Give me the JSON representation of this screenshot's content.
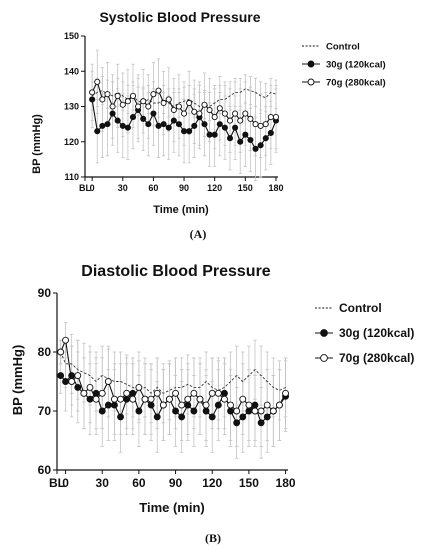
{
  "chart_data": [
    {
      "panel": "A",
      "type": "line",
      "title": "Systolic Blood Pressure",
      "xlabel": "Time (min)",
      "ylabel": "BP (mmHg)",
      "caption": "(A)",
      "xlim": [
        -7,
        182
      ],
      "ylim": [
        110,
        150
      ],
      "xticks": [
        {
          "v": -7,
          "label": "BL"
        },
        {
          "v": 0,
          "label": "0"
        },
        {
          "v": 30,
          "label": "30"
        },
        {
          "v": 60,
          "label": "60"
        },
        {
          "v": 90,
          "label": "90"
        },
        {
          "v": 120,
          "label": "120"
        },
        {
          "v": 150,
          "label": "150"
        },
        {
          "v": 180,
          "label": "180"
        }
      ],
      "yticks": [
        110,
        120,
        130,
        140,
        150
      ],
      "legend_position": "right",
      "x": [
        0,
        5,
        10,
        15,
        20,
        25,
        30,
        35,
        40,
        45,
        50,
        55,
        60,
        65,
        70,
        75,
        80,
        85,
        90,
        95,
        100,
        105,
        110,
        115,
        120,
        125,
        130,
        135,
        140,
        145,
        150,
        155,
        160,
        165,
        170,
        175,
        180
      ],
      "series": [
        {
          "name": "Control",
          "style": "dashed",
          "values": [
            133,
            134,
            134.5,
            133.5,
            133,
            134,
            133,
            132,
            133,
            131.5,
            131,
            132,
            131,
            131,
            132,
            131,
            130,
            131,
            131.5,
            132,
            131,
            130,
            130.5,
            130,
            131,
            132,
            132,
            133,
            134,
            134,
            135,
            134.5,
            134,
            133,
            132.5,
            134,
            133.5
          ],
          "errors": [
            4,
            4,
            4,
            4,
            4,
            4,
            4,
            4,
            4,
            4,
            4,
            4,
            4,
            4,
            4,
            4,
            4,
            4,
            4,
            4,
            4,
            4,
            4,
            4,
            4,
            4,
            4,
            4,
            4,
            4,
            4,
            4,
            4,
            4,
            4,
            4,
            4
          ]
        },
        {
          "name": "30g (120kcal)",
          "style": "filled",
          "values": [
            132,
            123,
            124.5,
            125,
            128,
            126,
            124.5,
            124,
            127,
            129,
            126.5,
            125,
            128,
            124.5,
            125,
            124,
            126,
            125,
            123,
            123,
            124.5,
            127,
            125,
            122,
            122,
            125,
            124,
            121,
            124,
            120,
            122,
            120.5,
            118,
            119,
            121,
            122.5,
            126
          ],
          "errors": [
            8,
            9,
            9,
            9,
            9,
            9,
            9,
            9,
            9,
            9,
            9,
            9,
            9,
            9,
            9,
            9,
            9,
            9,
            9,
            9,
            9,
            9,
            9,
            9,
            9,
            9,
            9,
            9,
            9,
            9,
            9,
            9,
            9,
            9,
            9,
            9,
            9
          ]
        },
        {
          "name": "70g (280kcal)",
          "style": "open",
          "values": [
            134,
            137,
            132,
            133.5,
            130,
            133,
            130.5,
            131.5,
            133,
            130,
            131.5,
            130,
            133.5,
            134.5,
            131,
            132,
            129,
            130,
            128,
            131,
            128.5,
            128,
            130.5,
            129,
            127,
            129.5,
            128,
            126,
            128,
            126,
            128,
            126.5,
            125,
            124.5,
            125,
            127,
            127
          ],
          "errors": [
            8,
            9,
            9,
            9,
            9,
            9,
            9,
            9,
            9,
            9,
            9,
            9,
            9,
            9,
            9,
            9,
            9,
            9,
            9,
            9,
            9,
            9,
            9,
            9,
            9,
            9,
            9,
            9,
            9,
            9,
            9,
            9,
            9,
            9,
            9,
            9,
            9
          ]
        }
      ]
    },
    {
      "panel": "B",
      "type": "line",
      "title": "Diastolic Blood Pressure",
      "xlabel": "Time (min)",
      "ylabel": "BP (mmHg)",
      "caption": "(B)",
      "xlim": [
        -7,
        182
      ],
      "ylim": [
        60,
        90
      ],
      "xticks": [
        {
          "v": -7,
          "label": "BL"
        },
        {
          "v": 0,
          "label": "0"
        },
        {
          "v": 30,
          "label": "30"
        },
        {
          "v": 60,
          "label": "60"
        },
        {
          "v": 90,
          "label": "90"
        },
        {
          "v": 120,
          "label": "120"
        },
        {
          "v": 150,
          "label": "150"
        },
        {
          "v": 180,
          "label": "180"
        }
      ],
      "yticks": [
        60,
        70,
        80,
        90
      ],
      "legend_position": "right",
      "x": [
        -4,
        0,
        5,
        10,
        15,
        20,
        25,
        30,
        35,
        40,
        45,
        50,
        55,
        60,
        65,
        70,
        75,
        80,
        85,
        90,
        95,
        100,
        105,
        110,
        115,
        120,
        125,
        130,
        135,
        140,
        145,
        150,
        155,
        160,
        165,
        170,
        175,
        180
      ],
      "series": [
        {
          "name": "Control",
          "style": "dashed",
          "values": [
            80,
            78,
            78,
            77,
            76.5,
            76,
            75,
            76,
            75.5,
            75,
            75,
            74.5,
            74,
            73.5,
            74,
            73,
            74,
            73,
            73.5,
            74,
            74,
            74.5,
            74,
            74,
            75,
            74,
            73.5,
            74,
            75,
            76,
            75,
            76,
            77,
            76,
            75,
            74,
            73.5,
            74
          ],
          "errors": [
            2,
            4,
            5,
            5,
            5,
            5,
            5,
            5,
            5,
            5,
            5,
            5,
            5,
            5,
            5,
            5,
            5,
            5,
            5,
            5,
            5,
            5,
            5,
            5,
            5,
            5,
            5,
            5,
            5,
            5,
            5,
            5,
            5,
            5,
            5,
            5,
            5,
            5
          ]
        },
        {
          "name": "30g (120kcal)",
          "style": "filled",
          "values": [
            76,
            75,
            76,
            74,
            73,
            72,
            73,
            70,
            71,
            71,
            69,
            72,
            73,
            70,
            72,
            71,
            69,
            71,
            72,
            70,
            69,
            71,
            70,
            72,
            70,
            69,
            71,
            73,
            70,
            68,
            69,
            70,
            71,
            68,
            69,
            70,
            71,
            72.5
          ],
          "errors": [
            3,
            5,
            5,
            6,
            6,
            6,
            6,
            6,
            6,
            6,
            6,
            6,
            6,
            6,
            6,
            6,
            6,
            6,
            6,
            6,
            6,
            6,
            6,
            6,
            6,
            6,
            6,
            6,
            6,
            6,
            6,
            6,
            6,
            6,
            6,
            6,
            6,
            6
          ]
        },
        {
          "name": "70g (280kcal)",
          "style": "open",
          "values": [
            80,
            82,
            75,
            76,
            73,
            74,
            72,
            73,
            75,
            72,
            72,
            73,
            72,
            74,
            72,
            72,
            73,
            71,
            72,
            73,
            71,
            72,
            73,
            72,
            71,
            73,
            73,
            72,
            71,
            70,
            72,
            71,
            70,
            70,
            71,
            70,
            71,
            73
          ],
          "errors": [
            2,
            3,
            6,
            6,
            6,
            6,
            6,
            6,
            6,
            6,
            6,
            6,
            6,
            6,
            6,
            6,
            6,
            6,
            6,
            6,
            6,
            6,
            6,
            6,
            6,
            6,
            6,
            6,
            6,
            6,
            6,
            6,
            6,
            6,
            6,
            6,
            6,
            6
          ]
        }
      ]
    }
  ]
}
